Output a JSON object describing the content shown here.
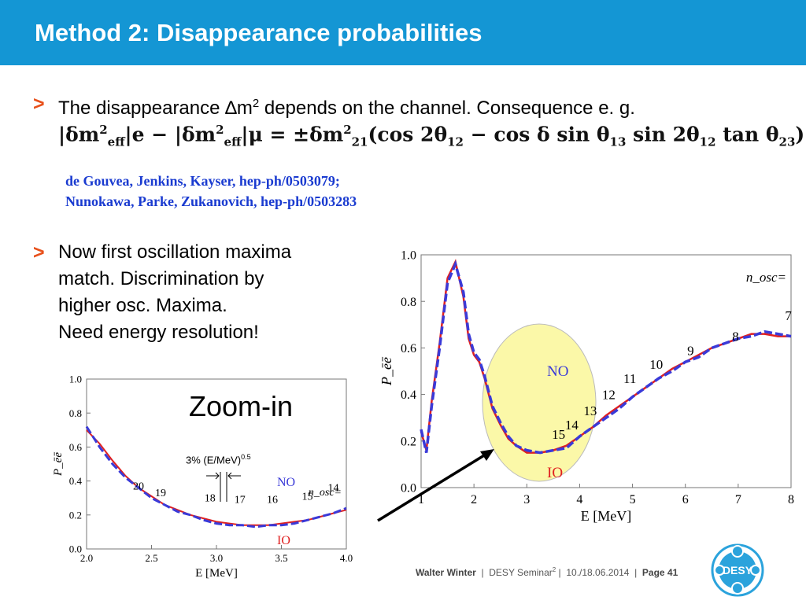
{
  "slide": {
    "title": "Method 2: Disappearance probabilities",
    "bullet_marker": ">",
    "bullet1": {
      "pre": "The disappearance ",
      "delta": "∆",
      "m": "m",
      "sup": "2",
      "post": " depends on the channel. Consequence e. g."
    },
    "formula": {
      "lhs": "|δm",
      "sub_eff": "eff",
      "sup2": "2",
      "e": "|e − |δm",
      "mu": "|μ = ±δm",
      "sub21": "21",
      "rhs": "(cos 2θ",
      "s12": "12",
      "mid": " − cos δ sin θ",
      "s13": "13",
      "mid2": " sin 2θ",
      "mid3": " tan θ",
      "s23": "23",
      "close": ")"
    },
    "references": [
      "de Gouvea, Jenkins, Kayser, hep-ph/0503079;",
      "Nunokawa, Parke, Zukanovich, hep-ph/0503283"
    ],
    "bullet2_lines": [
      "Now first oscillation maxima",
      "match. Discrimination by",
      "higher osc. Maxima.",
      "Need energy resolution!"
    ],
    "zoom_label": "Zoom-in",
    "resolution_note": {
      "text": "3% (E/MeV)",
      "sup": "0.5"
    }
  },
  "footer": {
    "author": "Walter Winter",
    "sep": "|",
    "event": "DESY Seminar",
    "event_sup": "2",
    "dates": "10./18.06.2014",
    "page": "Page 41",
    "logo_text": "DESY"
  },
  "colors": {
    "header": "#1496d4",
    "bullet": "#e8501b",
    "ref": "#1a3bd0",
    "no": "#3a3ad8",
    "io": "#e02020",
    "ellipse": "#fbf8a8"
  },
  "chart_data": [
    {
      "type": "line",
      "xlabel": "E [MeV]",
      "ylabel": "P_ēē",
      "xlim": [
        1,
        8
      ],
      "ylim": [
        0,
        1.0
      ],
      "xticks": [
        "1",
        "2",
        "3",
        "4",
        "5",
        "6",
        "7",
        "8"
      ],
      "yticks": [
        "0.0",
        "0.2",
        "0.4",
        "0.6",
        "0.8",
        "1.0"
      ],
      "legend_title": "n_osc=",
      "annotations": {
        "no": "NO",
        "io": "IO"
      },
      "osc_labels": [
        {
          "text": "7",
          "x": 7.95,
          "y": 0.72
        },
        {
          "text": "8",
          "x": 6.95,
          "y": 0.63
        },
        {
          "text": "9",
          "x": 6.1,
          "y": 0.57
        },
        {
          "text": "10",
          "x": 5.45,
          "y": 0.51
        },
        {
          "text": "11",
          "x": 4.95,
          "y": 0.45
        },
        {
          "text": "12",
          "x": 4.55,
          "y": 0.38
        },
        {
          "text": "13",
          "x": 4.2,
          "y": 0.31
        },
        {
          "text": "14",
          "x": 3.85,
          "y": 0.25
        },
        {
          "text": "15",
          "x": 3.6,
          "y": 0.21
        }
      ],
      "series": [
        {
          "name": "NO",
          "x": [
            1.0,
            1.1,
            1.2,
            1.35,
            1.5,
            1.65,
            1.8,
            1.9,
            2.0,
            2.1,
            2.2,
            2.35,
            2.5,
            2.65,
            2.8,
            3.0,
            3.25,
            3.5,
            3.75,
            4.0,
            4.25,
            4.5,
            4.75,
            5.0,
            5.25,
            5.5,
            5.75,
            6.0,
            6.25,
            6.5,
            6.75,
            7.0,
            7.25,
            7.5,
            7.75,
            8.0
          ],
          "y": [
            0.25,
            0.15,
            0.35,
            0.6,
            0.88,
            0.96,
            0.84,
            0.66,
            0.58,
            0.55,
            0.48,
            0.35,
            0.28,
            0.22,
            0.18,
            0.16,
            0.15,
            0.16,
            0.17,
            0.22,
            0.26,
            0.3,
            0.34,
            0.39,
            0.43,
            0.47,
            0.5,
            0.54,
            0.56,
            0.6,
            0.62,
            0.64,
            0.65,
            0.67,
            0.66,
            0.65
          ]
        },
        {
          "name": "IO",
          "x": [
            1.0,
            1.1,
            1.2,
            1.35,
            1.5,
            1.65,
            1.8,
            1.9,
            2.0,
            2.1,
            2.2,
            2.35,
            2.5,
            2.65,
            2.8,
            3.0,
            3.25,
            3.5,
            3.75,
            4.0,
            4.25,
            4.5,
            4.75,
            5.0,
            5.25,
            5.5,
            5.75,
            6.0,
            6.25,
            6.5,
            6.75,
            7.0,
            7.25,
            7.5,
            7.75,
            8.0
          ],
          "y": [
            0.24,
            0.16,
            0.37,
            0.62,
            0.9,
            0.97,
            0.82,
            0.64,
            0.57,
            0.54,
            0.47,
            0.34,
            0.27,
            0.21,
            0.18,
            0.15,
            0.15,
            0.16,
            0.18,
            0.22,
            0.26,
            0.31,
            0.35,
            0.39,
            0.43,
            0.47,
            0.51,
            0.54,
            0.57,
            0.6,
            0.62,
            0.64,
            0.66,
            0.66,
            0.65,
            0.65
          ]
        }
      ]
    },
    {
      "type": "line",
      "xlabel": "E [MeV]",
      "ylabel": "P_ēē",
      "xlim": [
        2.0,
        4.0
      ],
      "ylim": [
        0,
        1.0
      ],
      "xticks": [
        "2.0",
        "2.5",
        "3.0",
        "3.5",
        "4.0"
      ],
      "yticks": [
        "0.0",
        "0.2",
        "0.4",
        "0.6",
        "0.8",
        "1.0"
      ],
      "legend_title": "n_osc=",
      "annotations": {
        "no": "NO",
        "io": "IO"
      },
      "osc_labels": [
        {
          "text": "20",
          "x": 2.4,
          "y": 0.35
        },
        {
          "text": "19",
          "x": 2.57,
          "y": 0.31
        },
        {
          "text": "18",
          "x": 2.95,
          "y": 0.28
        },
        {
          "text": "17",
          "x": 3.18,
          "y": 0.27
        },
        {
          "text": "16",
          "x": 3.43,
          "y": 0.27
        },
        {
          "text": "15",
          "x": 3.7,
          "y": 0.29
        },
        {
          "text": "14",
          "x": 3.9,
          "y": 0.34
        }
      ],
      "series": [
        {
          "name": "NO",
          "x": [
            2.0,
            2.1,
            2.2,
            2.3,
            2.4,
            2.5,
            2.6,
            2.7,
            2.8,
            2.9,
            3.0,
            3.1,
            3.2,
            3.3,
            3.4,
            3.5,
            3.6,
            3.7,
            3.8,
            3.9,
            4.0
          ],
          "y": [
            0.72,
            0.6,
            0.5,
            0.42,
            0.36,
            0.3,
            0.26,
            0.22,
            0.2,
            0.17,
            0.15,
            0.14,
            0.14,
            0.13,
            0.14,
            0.14,
            0.15,
            0.17,
            0.19,
            0.21,
            0.24
          ]
        },
        {
          "name": "IO",
          "x": [
            2.0,
            2.1,
            2.2,
            2.3,
            2.4,
            2.5,
            2.6,
            2.7,
            2.8,
            2.9,
            3.0,
            3.1,
            3.2,
            3.3,
            3.4,
            3.5,
            3.6,
            3.7,
            3.8,
            3.9,
            4.0
          ],
          "y": [
            0.7,
            0.62,
            0.52,
            0.43,
            0.36,
            0.31,
            0.26,
            0.23,
            0.2,
            0.18,
            0.16,
            0.15,
            0.14,
            0.14,
            0.14,
            0.15,
            0.16,
            0.17,
            0.19,
            0.21,
            0.23
          ]
        }
      ]
    }
  ]
}
